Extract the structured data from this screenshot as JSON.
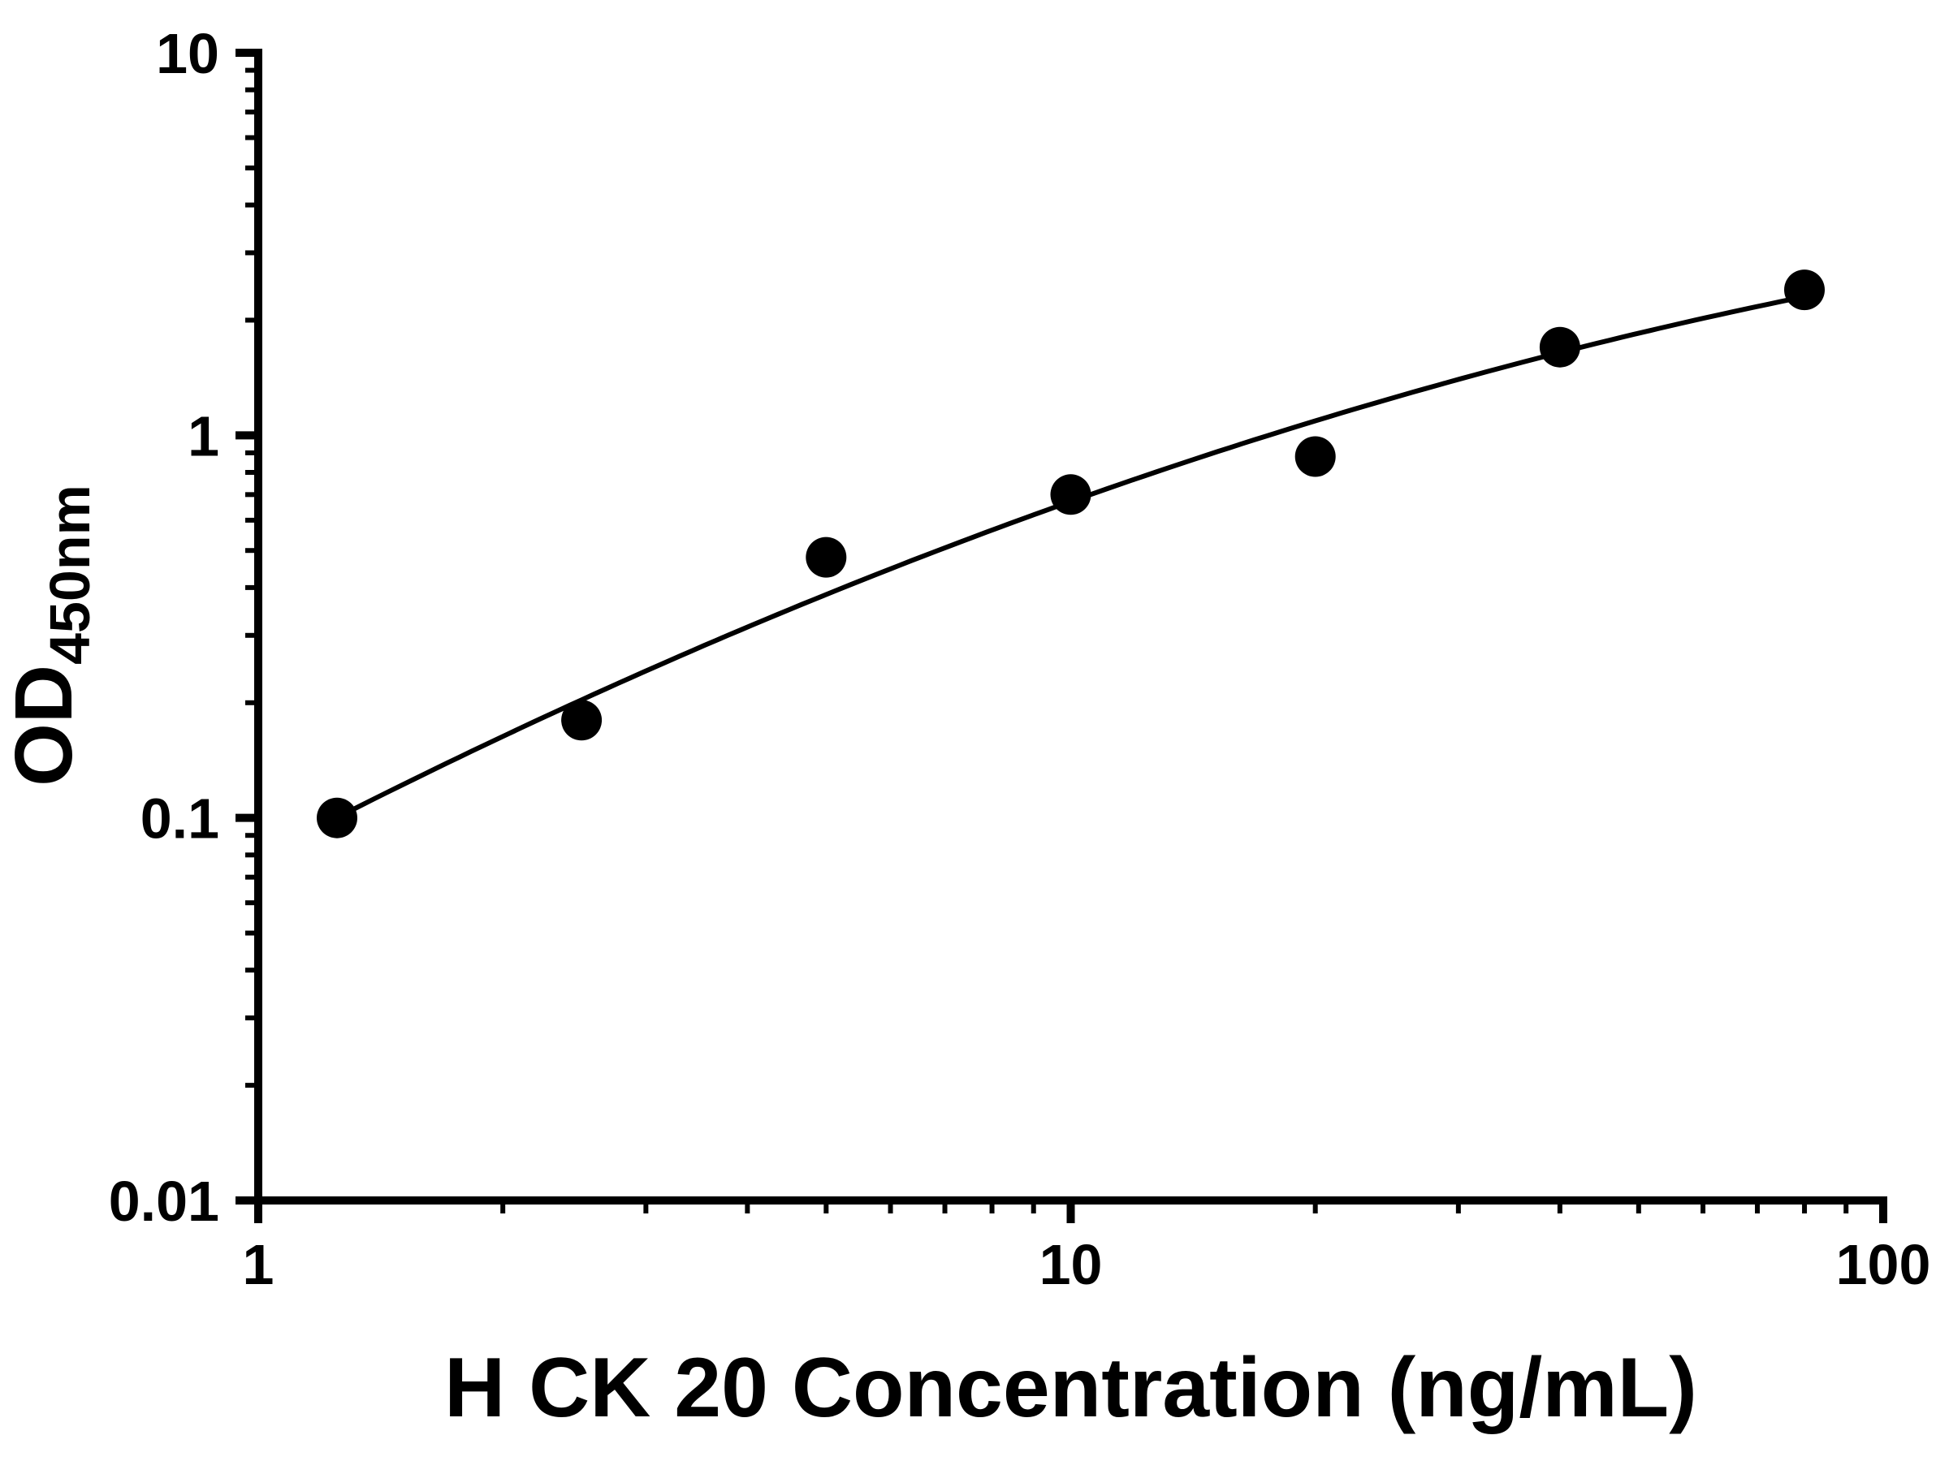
{
  "chart_data": {
    "type": "scatter",
    "title": "",
    "xlabel": "H CK 20 Concentration (ng/mL)",
    "ylabel_main": "OD",
    "ylabel_sub": "450nm",
    "x_scale": "log",
    "y_scale": "log",
    "xlim": [
      1,
      100
    ],
    "ylim": [
      0.01,
      10
    ],
    "x_tick_values": [
      1,
      10,
      100
    ],
    "x_tick_labels": [
      "1",
      "10",
      "100"
    ],
    "y_tick_values": [
      0.01,
      0.1,
      1,
      10
    ],
    "y_tick_labels": [
      "0.01",
      "0.1",
      "1",
      "10"
    ],
    "points": {
      "x": [
        1.25,
        2.5,
        5,
        10,
        20,
        40,
        80
      ],
      "y": [
        0.1,
        0.18,
        0.48,
        0.7,
        0.88,
        1.7,
        2.4
      ]
    },
    "fit_type": "quadratic-loglog",
    "marker_color": "#000000",
    "curve_color": "#000000",
    "axis_color": "#000000",
    "background_color": "#ffffff",
    "grid": false,
    "legend": null
  }
}
